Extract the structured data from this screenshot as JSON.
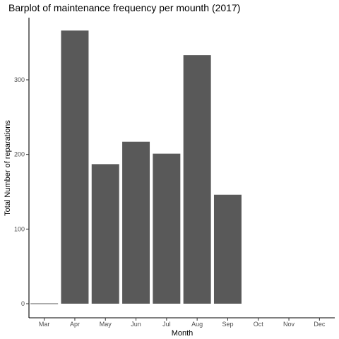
{
  "chart_data": {
    "type": "bar",
    "title": "Barplot of maintenance frequency per mounth (2017)",
    "xlabel": "Month",
    "ylabel": "Total Number of reparations",
    "categories": [
      "Mar",
      "Apr",
      "May",
      "Jun",
      "Jul",
      "Aug",
      "Sep",
      "Oct",
      "Nov",
      "Dec"
    ],
    "values": [
      1,
      366,
      187,
      217,
      201,
      333,
      146,
      null,
      null,
      null
    ],
    "ylim": [
      -19,
      387
    ],
    "yticks": [
      0,
      100,
      200,
      300
    ],
    "grid": false,
    "bar_color": "#595959"
  }
}
